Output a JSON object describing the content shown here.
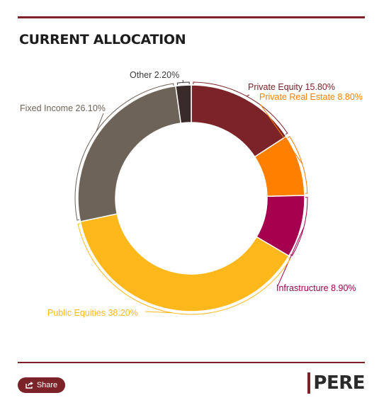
{
  "header": {
    "title": "CURRENT ALLOCATION"
  },
  "chart_data": {
    "type": "pie",
    "donut": true,
    "start_angle_deg": 0,
    "slices": [
      {
        "name": "Private Equity",
        "value": 15.8,
        "label": "Private Equity 15.80%",
        "color": "#7b2329",
        "label_color": "#7b2329"
      },
      {
        "name": "Private Real Estate",
        "value": 8.8,
        "label": "Private Real Estate 8.80%",
        "color": "#ff8000",
        "label_color": "#ff8000"
      },
      {
        "name": "Infrastructure",
        "value": 8.9,
        "label": "Infrastructure 8.90%",
        "color": "#a50050",
        "label_color": "#a50050"
      },
      {
        "name": "Public Equities",
        "value": 38.2,
        "label": "Public Equities 38.20%",
        "color": "#ffb81c",
        "label_color": "#ffb81c"
      },
      {
        "name": "Fixed Income",
        "value": 26.1,
        "label": "Fixed Income 26.10%",
        "color": "#6e6359",
        "label_color": "#6e6359"
      },
      {
        "name": "Other",
        "value": 2.2,
        "label": "Other 2.20%",
        "color": "#3a2a29",
        "label_color": "#3a3a3a"
      }
    ]
  },
  "footer": {
    "share_label": "Share",
    "share_icon": "share-icon",
    "brand": "PERE",
    "accent_color": "#7b2329"
  }
}
